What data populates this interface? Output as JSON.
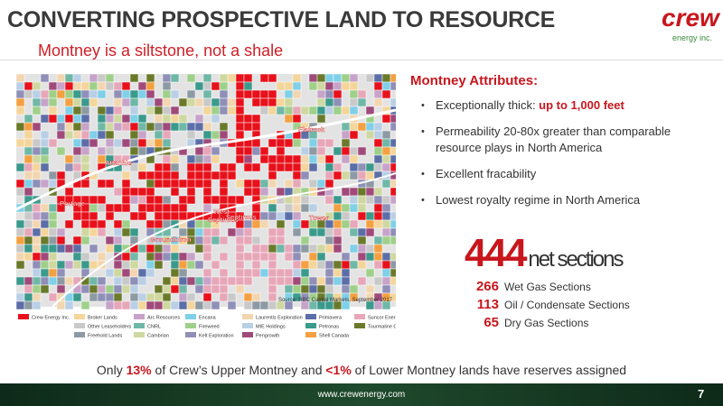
{
  "header": {
    "title": "CONVERTING PROSPECTIVE LAND TO RESOURCE",
    "subtitle": "Montney is a siltstone, not a shale",
    "logo": "crew",
    "logo_sub": "energy inc."
  },
  "map": {
    "labels": [
      "Flatrock",
      "Attachie",
      "Portage",
      "West",
      "Septimus",
      "Septimus",
      "Groundbirch",
      "Tower"
    ],
    "source": "Source: RBC Capital Markets, September 2017",
    "legend": [
      [
        {
          "name": "Crew Energy Inc.",
          "color": "#e8101a"
        }
      ],
      [
        {
          "name": "Broker Lands",
          "color": "#f4d59a"
        },
        {
          "name": "Other Leaseholders",
          "color": "#c9c9c9"
        },
        {
          "name": "Freehold Lands",
          "color": "#8d9aa3"
        }
      ],
      [
        {
          "name": "Arc Resources",
          "color": "#c7a3c9"
        },
        {
          "name": "CNRL",
          "color": "#6fb8a8"
        },
        {
          "name": "Cambrian",
          "color": "#cfd8a0"
        }
      ],
      [
        {
          "name": "Encana",
          "color": "#7fd0e8"
        },
        {
          "name": "Fireweed",
          "color": "#9fd08a"
        },
        {
          "name": "Kelt Exploration",
          "color": "#8f8fb8"
        }
      ],
      [
        {
          "name": "Laurentis Exploration",
          "color": "#f2d6b0"
        },
        {
          "name": "MIE Holdings",
          "color": "#b9cfe6"
        },
        {
          "name": "Pengrowth",
          "color": "#a04a7a"
        }
      ],
      [
        {
          "name": "Primavera",
          "color": "#5b6ea8"
        },
        {
          "name": "Petronas",
          "color": "#3a9a8c"
        },
        {
          "name": "Shell Canada",
          "color": "#f4a040"
        }
      ],
      [
        {
          "name": "Suncor Energy",
          "color": "#e7a7b8"
        },
        {
          "name": "Tourmaline Oil",
          "color": "#6a7a2a"
        }
      ]
    ]
  },
  "attributes": {
    "heading": "Montney Attributes:",
    "items": [
      {
        "text": "Exceptionally thick: ",
        "highlight": "up to 1,000 feet"
      },
      {
        "text": "Permeability 20-80x greater than comparable resource plays in North America"
      },
      {
        "text": "Excellent fracability"
      },
      {
        "text": "Lowest royalty regime in North America"
      }
    ]
  },
  "sections": {
    "total": "444",
    "total_label": "net sections",
    "rows": [
      {
        "value": "266",
        "label": "Wet Gas Sections"
      },
      {
        "value": "113",
        "label": "Oil / Condensate Sections"
      },
      {
        "value": "65",
        "label": "Dry Gas Sections"
      }
    ]
  },
  "note": [
    "Only ",
    "13%",
    " of Crew’s Upper Montney and ",
    "<1%",
    " of Lower Montney lands have reserves assigned"
  ],
  "footer": {
    "url": "www.crewenergy.com",
    "page": "7"
  }
}
